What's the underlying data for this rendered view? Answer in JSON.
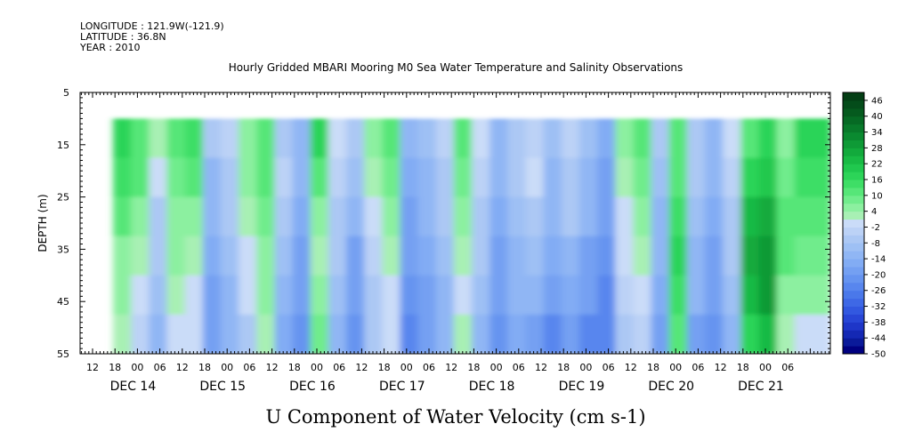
{
  "meta": {
    "longitude": "LONGITUDE : 121.9W(-121.9)",
    "latitude": "LATITUDE : 36.8N",
    "year": "YEAR : 2010"
  },
  "chart_data": {
    "type": "heatmap",
    "title": "Hourly Gridded MBARI Mooring M0 Sea Water Temperature and Salinity Observations",
    "xlabel": "U Component of Water Velocity (cm s-1)",
    "ylabel": "DEPTH (m)",
    "y_ticks": [
      "5",
      "15",
      "25",
      "35",
      "45",
      "55"
    ],
    "ylim": [
      5,
      55
    ],
    "data_depth_range": [
      10,
      55
    ],
    "hour_ticks": [
      "12",
      "18",
      "00",
      "06",
      "12",
      "18",
      "00",
      "06",
      "12",
      "18",
      "00",
      "06",
      "12",
      "18",
      "00",
      "06",
      "12",
      "18",
      "00",
      "06",
      "12",
      "18",
      "00",
      "06",
      "12",
      "18",
      "00",
      "06",
      "12",
      "18",
      "00",
      "06"
    ],
    "day_labels": [
      "DEC 14",
      "DEC 15",
      "DEC 16",
      "DEC 17",
      "DEC 18",
      "DEC 19",
      "DEC 20",
      "DEC 21"
    ],
    "colorbar": {
      "labels": [
        "46",
        "40",
        "34",
        "28",
        "22",
        "16",
        "10",
        "4",
        "-2",
        "-8",
        "-14",
        "-20",
        "-26",
        "-32",
        "-38",
        "-44",
        "-50"
      ],
      "levels": [
        -50,
        -47,
        -44,
        -41,
        -38,
        -35,
        -32,
        -29,
        -26,
        -23,
        -20,
        -17,
        -14,
        -11,
        -8,
        -5,
        -2,
        1,
        4,
        7,
        10,
        13,
        16,
        19,
        22,
        25,
        28,
        31,
        34,
        37,
        40,
        43,
        46,
        49
      ],
      "colors": [
        "#000080",
        "#0a1a9a",
        "#1428b4",
        "#1e36c8",
        "#2846d6",
        "#3258e0",
        "#3e68e6",
        "#4a78ea",
        "#5886ee",
        "#6694f0",
        "#74a0f2",
        "#82acf4",
        "#90b6f4",
        "#9ec0f4",
        "#acc8f4",
        "#bcd2f6",
        "#cadcf8",
        "#a8f0b4",
        "#8cf0a0",
        "#70ec8c",
        "#56e678",
        "#3ede66",
        "#2cd458",
        "#20c84e",
        "#18ba44",
        "#12aa3c",
        "#0e9a36",
        "#0a8a30",
        "#087a2a",
        "#066a24",
        "#055a1e",
        "#044c1a",
        "#033e14"
      ]
    },
    "columns": [
      {
        "t": 0.0,
        "u": [
          18,
          14,
          10,
          6,
          4,
          2
        ]
      },
      {
        "t": 0.5,
        "u": [
          12,
          10,
          6,
          2,
          0,
          -4
        ]
      },
      {
        "t": 1.0,
        "u": [
          2,
          -2,
          -6,
          -8,
          -10,
          -12
        ]
      },
      {
        "t": 1.5,
        "u": [
          10,
          8,
          6,
          4,
          2,
          0
        ]
      },
      {
        "t": 2.0,
        "u": [
          14,
          10,
          6,
          2,
          0,
          -2
        ]
      },
      {
        "t": 2.5,
        "u": [
          -8,
          -12,
          -14,
          -16,
          -18,
          -20
        ]
      },
      {
        "t": 3.0,
        "u": [
          -4,
          -6,
          -8,
          -10,
          -12,
          -14
        ]
      },
      {
        "t": 3.5,
        "u": [
          6,
          4,
          2,
          0,
          -2,
          -6
        ]
      },
      {
        "t": 4.0,
        "u": [
          12,
          10,
          8,
          6,
          4,
          2
        ]
      },
      {
        "t": 4.5,
        "u": [
          -6,
          -4,
          -8,
          -10,
          -14,
          -16
        ]
      },
      {
        "t": 5.0,
        "u": [
          -12,
          -14,
          -16,
          -18,
          -20,
          -22
        ]
      },
      {
        "t": 5.5,
        "u": [
          16,
          12,
          6,
          2,
          4,
          8
        ]
      },
      {
        "t": 6.0,
        "u": [
          -2,
          -4,
          -6,
          -8,
          -10,
          -14
        ]
      },
      {
        "t": 6.5,
        "u": [
          -8,
          -10,
          -14,
          -18,
          -20,
          -22
        ]
      },
      {
        "t": 7.0,
        "u": [
          4,
          2,
          0,
          -4,
          -6,
          -8
        ]
      },
      {
        "t": 7.5,
        "u": [
          10,
          8,
          4,
          2,
          0,
          -2
        ]
      },
      {
        "t": 8.0,
        "u": [
          -14,
          -16,
          -18,
          -20,
          -22,
          -24
        ]
      },
      {
        "t": 8.5,
        "u": [
          -10,
          -12,
          -14,
          -16,
          -18,
          -20
        ]
      },
      {
        "t": 9.0,
        "u": [
          -4,
          -6,
          -8,
          -10,
          -12,
          -14
        ]
      },
      {
        "t": 9.5,
        "u": [
          12,
          8,
          4,
          2,
          0,
          2
        ]
      },
      {
        "t": 10.0,
        "u": [
          -2,
          -4,
          -6,
          -8,
          -10,
          -12
        ]
      },
      {
        "t": 10.5,
        "u": [
          -12,
          -14,
          -16,
          -18,
          -20,
          -22
        ]
      },
      {
        "t": 11.0,
        "u": [
          -6,
          -8,
          -10,
          -12,
          -14,
          -16
        ]
      },
      {
        "t": 11.5,
        "u": [
          -4,
          -2,
          -6,
          -10,
          -14,
          -18
        ]
      },
      {
        "t": 12.0,
        "u": [
          -10,
          -12,
          -14,
          -16,
          -20,
          -24
        ]
      },
      {
        "t": 12.5,
        "u": [
          -4,
          -6,
          -8,
          -12,
          -16,
          -18
        ]
      },
      {
        "t": 13.0,
        "u": [
          -10,
          -12,
          -14,
          -18,
          -20,
          -24
        ]
      },
      {
        "t": 13.5,
        "u": [
          -16,
          -18,
          -20,
          -22,
          -24,
          -26
        ]
      },
      {
        "t": 14.0,
        "u": [
          4,
          2,
          0,
          -2,
          -4,
          -6
        ]
      },
      {
        "t": 14.5,
        "u": [
          10,
          8,
          6,
          2,
          0,
          -4
        ]
      },
      {
        "t": 15.0,
        "u": [
          -8,
          -10,
          -12,
          -14,
          -16,
          -18
        ]
      },
      {
        "t": 15.5,
        "u": [
          10,
          12,
          14,
          16,
          14,
          10
        ]
      },
      {
        "t": 16.0,
        "u": [
          -6,
          -8,
          -10,
          -12,
          -14,
          -18
        ]
      },
      {
        "t": 16.5,
        "u": [
          -12,
          -14,
          -16,
          -18,
          -20,
          -22
        ]
      },
      {
        "t": 17.0,
        "u": [
          -2,
          -4,
          -6,
          -8,
          -10,
          -12
        ]
      },
      {
        "t": 17.5,
        "u": [
          12,
          16,
          22,
          26,
          22,
          18
        ]
      },
      {
        "t": 18.0,
        "u": [
          16,
          20,
          26,
          30,
          28,
          22
        ]
      },
      {
        "t": 18.5,
        "u": [
          6,
          8,
          10,
          10,
          6,
          2
        ]
      },
      {
        "t": 19.0,
        "u": [
          16,
          14,
          12,
          8,
          4,
          0
        ]
      }
    ]
  }
}
